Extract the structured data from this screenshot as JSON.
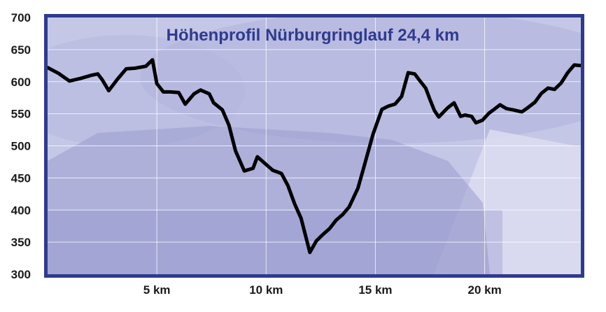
{
  "chart_data": {
    "type": "line",
    "title": "Höhenprofil Nürburgringlauf 24,4 km",
    "xlabel": "",
    "ylabel": "",
    "xlim": [
      0,
      24.4
    ],
    "ylim": [
      300,
      700
    ],
    "y_ticks": [
      300,
      350,
      400,
      450,
      500,
      550,
      600,
      650,
      700
    ],
    "x_ticks": [
      5,
      10,
      15,
      20
    ],
    "x_tick_labels": [
      "5 km",
      "10 km",
      "15 km",
      "20 km"
    ],
    "grid": true,
    "line_color": "#000000",
    "frame_color": "#2f3a8f",
    "plot_bg_color": "#c9cbe8",
    "series": [
      {
        "x": [
          0,
          0.5,
          1,
          1.5,
          2,
          2.3,
          2.5,
          2.8,
          3.2,
          3.6,
          4.0,
          4.5,
          4.8,
          5.0,
          5.3,
          5.6,
          6.0,
          6.3,
          6.7,
          7.0,
          7.4,
          7.6,
          8.0,
          8.3,
          8.6,
          9.0,
          9.4,
          9.6,
          10.0,
          10.3,
          10.7,
          11.0,
          11.3,
          11.6,
          12.0,
          12.3,
          12.6,
          12.9,
          13.2,
          13.5,
          13.8,
          14.2,
          14.5,
          14.9,
          15.3,
          15.6,
          15.9,
          16.2,
          16.5,
          16.8,
          17.0,
          17.3,
          17.5,
          17.7,
          17.9,
          18.1,
          18.3,
          18.6,
          18.9,
          19.1,
          19.4,
          19.6,
          19.9,
          20.2,
          20.4,
          20.7,
          21.0,
          21.3,
          21.7,
          22.0,
          22.3,
          22.6,
          22.9,
          23.2,
          23.5,
          23.8,
          24.1,
          24.4
        ],
        "y": [
          622,
          613,
          601,
          605,
          610,
          612,
          603,
          586,
          604,
          620,
          621,
          624,
          634,
          597,
          584,
          584,
          583,
          565,
          581,
          587,
          581,
          567,
          556,
          532,
          492,
          461,
          465,
          483,
          471,
          462,
          457,
          438,
          410,
          387,
          334,
          352,
          362,
          371,
          384,
          393,
          405,
          434,
          470,
          519,
          557,
          562,
          565,
          577,
          614,
          612,
          603,
          590,
          572,
          555,
          545,
          552,
          559,
          567,
          546,
          548,
          546,
          536,
          540,
          551,
          556,
          564,
          558,
          556,
          553,
          560,
          568,
          582,
          590,
          588,
          598,
          614,
          626,
          625
        ]
      }
    ]
  }
}
